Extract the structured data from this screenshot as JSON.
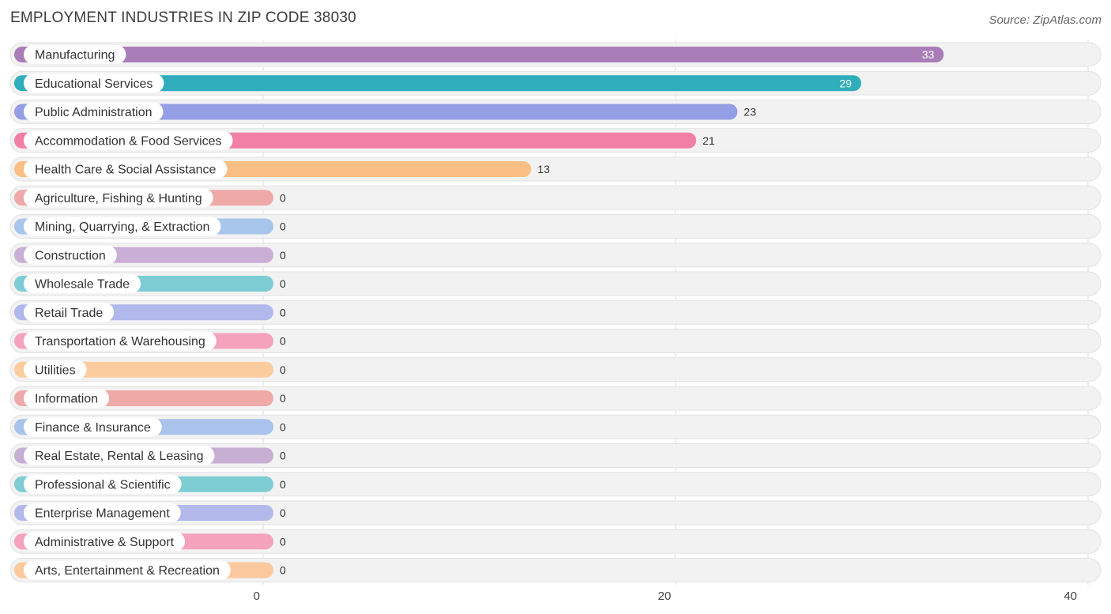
{
  "header": {
    "title": "EMPLOYMENT INDUSTRIES IN ZIP CODE 38030",
    "source": "Source: ZipAtlas.com"
  },
  "chart_data": {
    "type": "bar",
    "orientation": "horizontal",
    "title": "EMPLOYMENT INDUSTRIES IN ZIP CODE 38030",
    "xlabel": "",
    "ylabel": "",
    "xlim": [
      0,
      40
    ],
    "ticks": [
      "0",
      "20",
      "40"
    ],
    "grid": true,
    "categories": [
      "Manufacturing",
      "Educational Services",
      "Public Administration",
      "Accommodation & Food Services",
      "Health Care & Social Assistance",
      "Agriculture, Fishing & Hunting",
      "Mining, Quarrying, & Extraction",
      "Construction",
      "Wholesale Trade",
      "Retail Trade",
      "Transportation & Warehousing",
      "Utilities",
      "Information",
      "Finance & Insurance",
      "Real Estate, Rental & Leasing",
      "Professional & Scientific",
      "Enterprise Management",
      "Administrative & Support",
      "Arts, Entertainment & Recreation"
    ],
    "values": [
      33,
      29,
      23,
      21,
      13,
      0,
      0,
      0,
      0,
      0,
      0,
      0,
      0,
      0,
      0,
      0,
      0,
      0,
      0
    ],
    "colors": [
      "#a97db8",
      "#2fadba",
      "#939ee4",
      "#f27fa6",
      "#f9bf85",
      "#efa9a9",
      "#a8c5eb",
      "#c9aed6",
      "#7ccdd3",
      "#b1b8ec",
      "#f5a3bd",
      "#fbcd9e",
      "#efaaa8",
      "#a9c3ec",
      "#c7aed3",
      "#7dcdd3",
      "#b4b9ec",
      "#f5a2bc",
      "#fbc99d"
    ]
  }
}
